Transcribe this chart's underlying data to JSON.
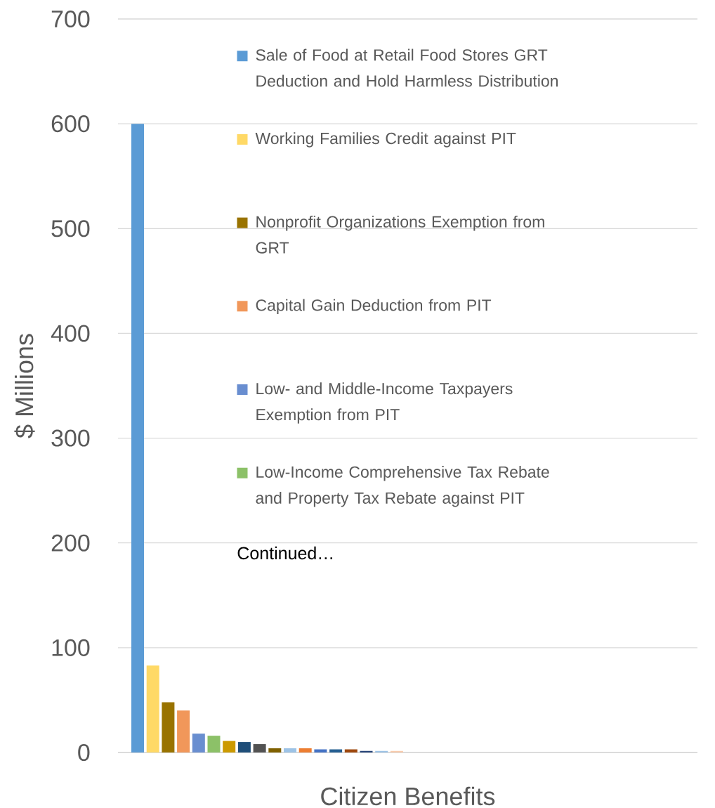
{
  "chart_data": {
    "type": "bar",
    "xlabel": "Citizen Benefits",
    "ylabel": "$ Millions",
    "categories": [
      null
    ],
    "series": [
      {
        "name": "Sale of Food at Retail Food Stores GRT Deduction and Hold Harmless Distribution",
        "color": "#5b9bd5",
        "values": [
          600
        ]
      },
      {
        "name": "Working Families Credit against PIT",
        "color": "#ffd966",
        "values": [
          83
        ]
      },
      {
        "name": "Nonprofit Organizations Exemption from GRT",
        "color": "#997300",
        "values": [
          48
        ]
      },
      {
        "name": "Capital Gain Deduction from PIT",
        "color": "#f1975a",
        "values": [
          40
        ]
      },
      {
        "name": "Low- and Middle-Income Taxpayers Exemption from PIT",
        "color": "#698ed0",
        "values": [
          18
        ]
      },
      {
        "name": "Low-Income Comprehensive Tax Rebate and Property Tax Rebate against PIT",
        "color": "#8cc168",
        "values": [
          16
        ]
      },
      {
        "color": "#cc9a00",
        "values": [
          11
        ]
      },
      {
        "color": "#1f4e79",
        "values": [
          10
        ]
      },
      {
        "color": "#525252",
        "values": [
          8
        ]
      },
      {
        "color": "#7f6000",
        "values": [
          4
        ]
      },
      {
        "color": "#9dc3e6",
        "values": [
          4
        ]
      },
      {
        "color": "#ed7d31",
        "values": [
          4
        ]
      },
      {
        "color": "#4472c4",
        "values": [
          3
        ]
      },
      {
        "color": "#255e91",
        "values": [
          3
        ]
      },
      {
        "color": "#9e480e",
        "values": [
          3
        ]
      },
      {
        "color": "#264478",
        "values": [
          1.5
        ]
      },
      {
        "color": "#9dc3e6",
        "values": [
          1.5
        ]
      },
      {
        "color": "#f8cbad",
        "values": [
          1.5
        ]
      }
    ],
    "ylim": [
      0,
      700
    ],
    "yticks": [
      0,
      100,
      200,
      300,
      400,
      500,
      600,
      700
    ],
    "grid": "y",
    "legend": "top",
    "annotations": [
      "Continued…"
    ]
  }
}
